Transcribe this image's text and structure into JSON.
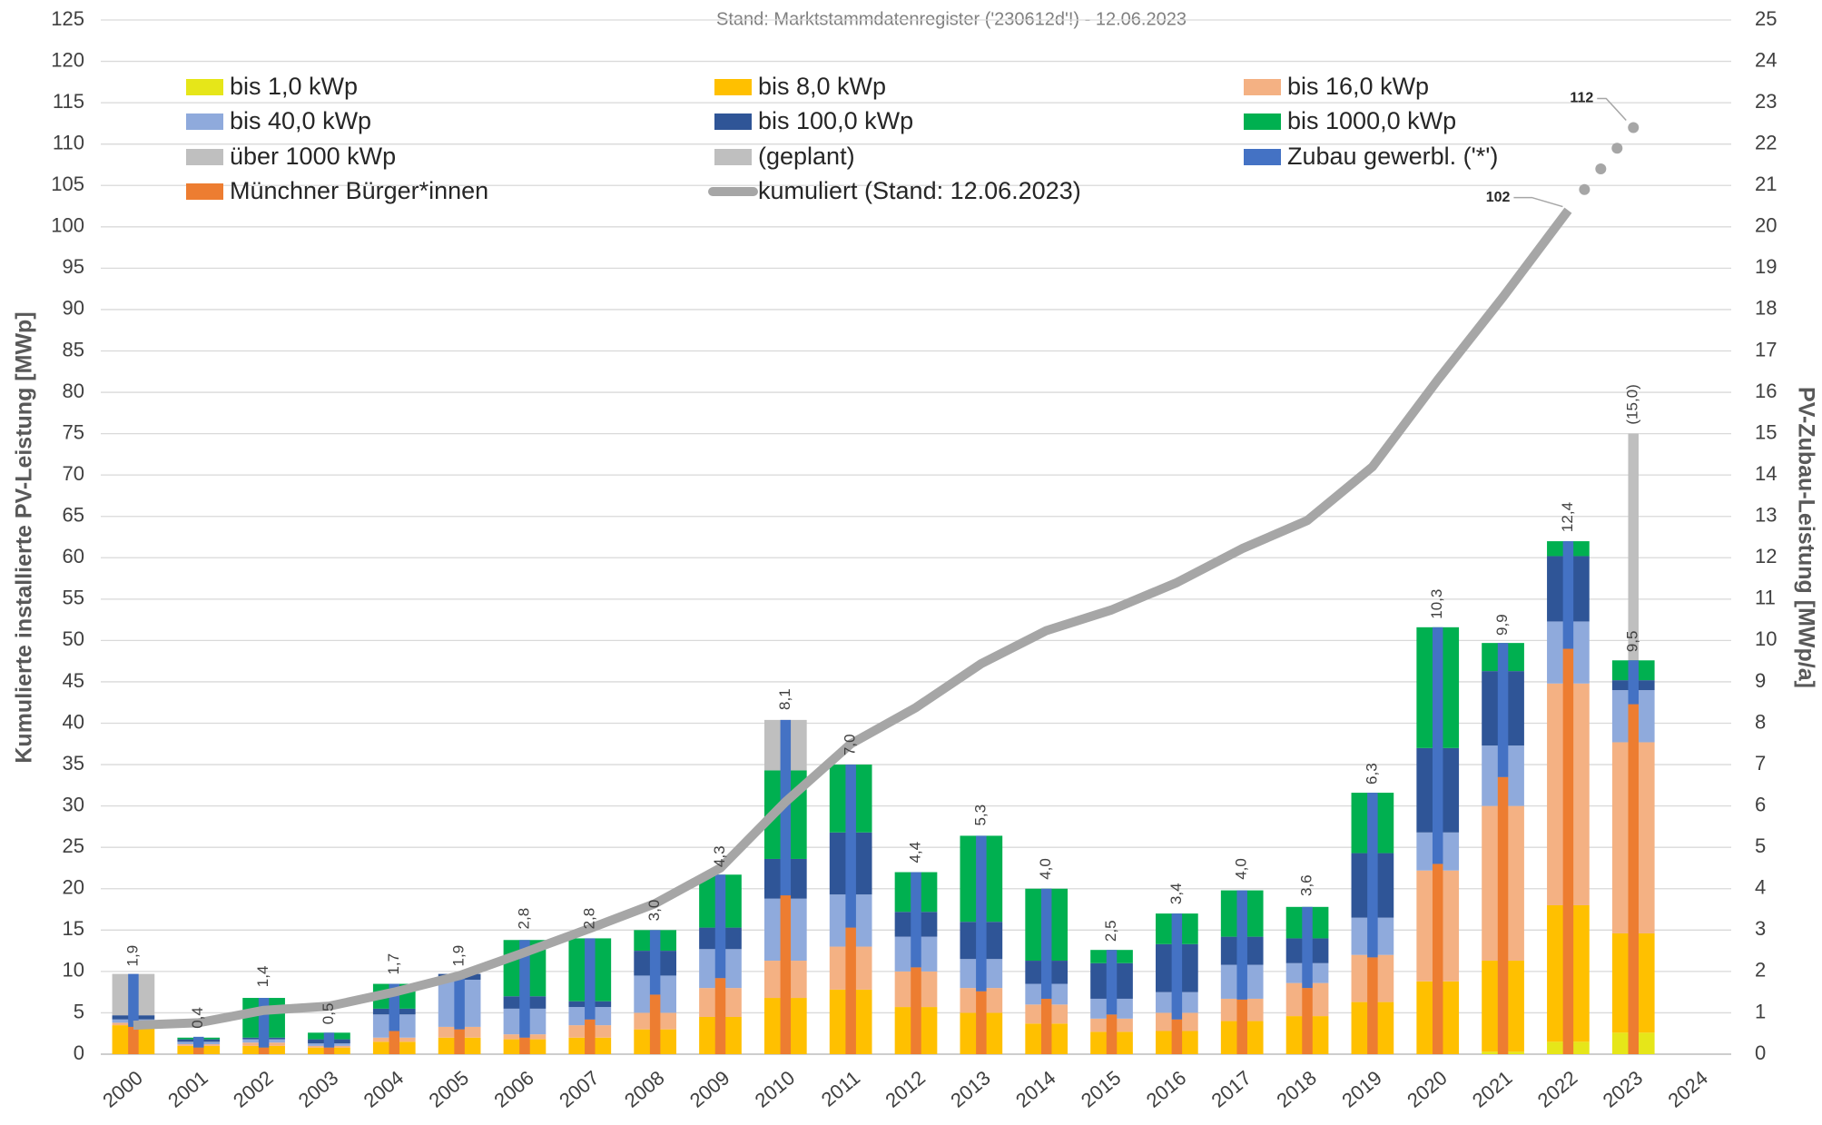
{
  "chart_data": {
    "type": "bar",
    "title": "Stand: Marktstammdatenregister ('230612d'!) - 12.06.2023",
    "y_label": "Kumulierte installierte PV-Leistung [MWp]",
    "y2_label": "PV-Zubau-Leistung [MWp/a]",
    "categories": [
      "2000",
      "2001",
      "2002",
      "2003",
      "2004",
      "2005",
      "2006",
      "2007",
      "2008",
      "2009",
      "2010",
      "2011",
      "2012",
      "2013",
      "2014",
      "2015",
      "2016",
      "2017",
      "2018",
      "2019",
      "2020",
      "2021",
      "2022",
      "2023",
      "2024"
    ],
    "ylim": [
      0,
      125
    ],
    "yticks": [
      0,
      5,
      10,
      15,
      20,
      25,
      30,
      35,
      40,
      45,
      50,
      55,
      60,
      65,
      70,
      75,
      80,
      85,
      90,
      95,
      100,
      105,
      110,
      115,
      120,
      125
    ],
    "y2lim": [
      0,
      25
    ],
    "y2ticks": [
      0,
      1,
      2,
      3,
      4,
      5,
      6,
      7,
      8,
      9,
      10,
      11,
      12,
      13,
      14,
      15,
      16,
      17,
      18,
      19,
      20,
      21,
      22,
      23,
      24,
      25
    ],
    "grid": true,
    "series": [
      {
        "name": "bis 1,0 kWp",
        "kind": "stack",
        "axis": "y2",
        "color": "#e6e619",
        "values": [
          0,
          0,
          0,
          0,
          0,
          0,
          0,
          0,
          0,
          0,
          0,
          0,
          0,
          0,
          0,
          0,
          0,
          0,
          0,
          0,
          0,
          0.06,
          0.3,
          0.52,
          null
        ]
      },
      {
        "name": "bis 8,0 kWp",
        "kind": "stack",
        "axis": "y2",
        "color": "#ffc000",
        "values": [
          0.7,
          0.2,
          0.2,
          0.16,
          0.3,
          0.4,
          0.36,
          0.4,
          0.6,
          0.9,
          1.36,
          1.56,
          1.14,
          1.0,
          0.74,
          0.54,
          0.56,
          0.8,
          0.92,
          1.26,
          1.76,
          2.2,
          3.3,
          2.4,
          null
        ]
      },
      {
        "name": "bis 16,0 kWp",
        "kind": "stack",
        "axis": "y2",
        "color": "#f4b183",
        "values": [
          0.06,
          0.04,
          0.08,
          0.04,
          0.1,
          0.26,
          0.12,
          0.3,
          0.4,
          0.7,
          0.9,
          1.04,
          0.86,
          0.6,
          0.46,
          0.32,
          0.44,
          0.54,
          0.8,
          1.14,
          2.68,
          3.74,
          5.36,
          4.62,
          null
        ]
      },
      {
        "name": "bis 40,0 kWp",
        "kind": "stack",
        "axis": "y2",
        "color": "#8faadc",
        "values": [
          0.08,
          0.06,
          0.08,
          0.06,
          0.56,
          1.14,
          0.62,
          0.44,
          0.9,
          0.94,
          1.5,
          1.26,
          0.84,
          0.7,
          0.5,
          0.48,
          0.5,
          0.82,
          0.48,
          0.9,
          0.92,
          1.46,
          1.5,
          1.26,
          null
        ]
      },
      {
        "name": "bis 100,0 kWp",
        "kind": "stack",
        "axis": "y2",
        "color": "#2f5597",
        "values": [
          0.1,
          0.06,
          0.04,
          0.1,
          0.14,
          0.14,
          0.3,
          0.14,
          0.6,
          0.52,
          0.96,
          1.5,
          0.6,
          0.9,
          0.56,
          0.86,
          1.16,
          0.68,
          0.6,
          1.56,
          2.04,
          1.8,
          1.58,
          0.24,
          null
        ]
      },
      {
        "name": "bis 1000,0 kWp",
        "kind": "stack",
        "axis": "y2",
        "color": "#00b050",
        "values": [
          0,
          0.04,
          0.96,
          0.16,
          0.6,
          0,
          1.36,
          1.52,
          0.5,
          1.28,
          2.14,
          1.64,
          0.96,
          2.08,
          1.74,
          0.32,
          0.74,
          1.12,
          0.76,
          1.46,
          2.92,
          0.68,
          0.36,
          0.48,
          null
        ]
      },
      {
        "name": "über 1000 kWp",
        "kind": "stack",
        "axis": "y2",
        "color": "#bfbfbf",
        "values": [
          1.0,
          0,
          0,
          0,
          0,
          0,
          0,
          0,
          0,
          0,
          1.22,
          0,
          0,
          0,
          0,
          0,
          0,
          0,
          0,
          0,
          0,
          0,
          0,
          0,
          null
        ]
      },
      {
        "name": "(geplant)",
        "kind": "behind",
        "axis": "y2",
        "color": "#bfbfbf",
        "values": [
          null,
          null,
          null,
          null,
          null,
          null,
          null,
          null,
          null,
          null,
          null,
          null,
          null,
          null,
          null,
          null,
          null,
          null,
          null,
          null,
          null,
          null,
          null,
          15.0,
          null
        ],
        "value_labels": [
          null,
          null,
          null,
          null,
          null,
          null,
          null,
          null,
          null,
          null,
          null,
          null,
          null,
          null,
          null,
          null,
          null,
          null,
          null,
          null,
          null,
          null,
          null,
          "(15,0)",
          null
        ]
      },
      {
        "name": "Zubau gewerbl. ('*')",
        "kind": "thin-top",
        "axis": "y2",
        "color": "#4472c4",
        "values": [
          1.28,
          0.26,
          1.2,
          0.36,
          1.14,
          1.34,
          2.36,
          1.96,
          1.56,
          2.5,
          4.24,
          3.94,
          2.3,
          3.76,
          2.66,
          1.56,
          2.56,
          2.64,
          1.96,
          3.98,
          5.72,
          3.24,
          2.6,
          1.06,
          null
        ]
      },
      {
        "name": "Münchner Bürger*innen",
        "kind": "thin-base",
        "axis": "y2",
        "color": "#ed7d31",
        "values": [
          0.66,
          0.16,
          0.16,
          0.16,
          0.56,
          0.6,
          0.4,
          0.84,
          1.44,
          1.84,
          3.84,
          3.06,
          2.1,
          1.52,
          1.34,
          0.96,
          0.84,
          1.32,
          1.6,
          2.34,
          4.6,
          6.7,
          9.8,
          8.46,
          null
        ]
      },
      {
        "name": "kumuliert (Stand: 12.06.2023)",
        "kind": "line",
        "color": "#a6a6a6",
        "values": [
          3.5,
          3.8,
          5.3,
          5.8,
          7.5,
          9.5,
          12.3,
          15.2,
          18.2,
          22.5,
          30.5,
          37.5,
          41.9,
          47.2,
          51.2,
          53.7,
          57,
          61.1,
          64.5,
          71,
          81.5,
          91.5,
          102,
          null,
          null
        ],
        "value_labels": [
          null,
          null,
          null,
          null,
          null,
          null,
          null,
          null,
          null,
          null,
          null,
          null,
          null,
          null,
          null,
          null,
          null,
          null,
          null,
          null,
          null,
          null,
          "102",
          null,
          null
        ],
        "forecast": [
          null,
          null,
          null,
          null,
          null,
          null,
          null,
          null,
          null,
          null,
          null,
          null,
          null,
          null,
          null,
          null,
          null,
          null,
          null,
          null,
          null,
          null,
          null,
          112,
          null
        ],
        "forecast_labels": [
          null,
          null,
          null,
          null,
          null,
          null,
          null,
          null,
          null,
          null,
          null,
          null,
          null,
          null,
          null,
          null,
          null,
          null,
          null,
          null,
          null,
          null,
          null,
          "112",
          null
        ]
      }
    ],
    "totals": {
      "values": [
        1.9,
        0.4,
        1.4,
        0.5,
        1.7,
        1.9,
        2.8,
        2.8,
        3.0,
        4.3,
        8.1,
        7.0,
        4.4,
        5.3,
        4.0,
        2.5,
        3.4,
        4.0,
        3.6,
        6.3,
        10.3,
        9.9,
        12.4,
        9.5,
        null
      ],
      "value_labels": [
        "1,9",
        "0,4",
        "1,4",
        "0,5",
        "1,7",
        "1,9",
        "2,8",
        "2,8",
        "3,0",
        "4,3",
        "8,1",
        "7,0",
        "4,4",
        "5,3",
        "4,0",
        "2,5",
        "3,4",
        "4,0",
        "3,6",
        "6,3",
        "10,3",
        "9,9",
        "12,4",
        "9,5",
        null
      ]
    }
  }
}
